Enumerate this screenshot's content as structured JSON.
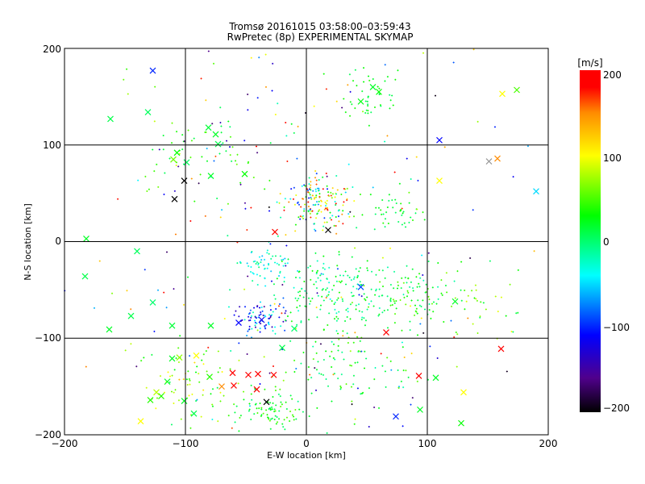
{
  "chart_data": {
    "type": "scatter",
    "title": "Tromsø 20161015 03:58:00–03:59:43",
    "subtitle": "RwPretec (8p) EXPERIMENTAL SKYMAP",
    "xlabel": "E-W location [km]",
    "ylabel": "N-S location [km]",
    "xlim": [
      -200,
      200
    ],
    "ylim": [
      -200,
      200
    ],
    "xticks": [
      "−200",
      "−100",
      "0",
      "100",
      "200"
    ],
    "yticks": [
      "−200",
      "−100",
      "0",
      "100",
      "200"
    ],
    "grid": true,
    "colorbar": {
      "label": "[m/s]",
      "range": [
        -200,
        200
      ],
      "ticks": [
        "200",
        "100",
        "0",
        "−100",
        "−200"
      ],
      "colors": {
        "200": "#ff0000",
        "180": "#ff1000",
        "150": "#ff8c00",
        "100": "#ffff00",
        "30": "#00ff00",
        "0": "#00ff6e",
        "-40": "#00ffff",
        "-110": "#0000ff",
        "-160": "#50008c",
        "-200": "#000000"
      }
    },
    "large_markers": [
      [
        -127,
        177,
        -100
      ],
      [
        -162,
        127,
        10
      ],
      [
        -131,
        134,
        5
      ],
      [
        -81,
        118,
        15
      ],
      [
        -75,
        111,
        20
      ],
      [
        -73,
        101,
        10
      ],
      [
        -107,
        92,
        30
      ],
      [
        -110,
        85,
        60
      ],
      [
        -99,
        82,
        5
      ],
      [
        -109,
        44,
        -200
      ],
      [
        -101,
        63,
        -200
      ],
      [
        -79,
        68,
        20
      ],
      [
        -51,
        70,
        30
      ],
      [
        -26,
        10,
        190
      ],
      [
        18,
        12,
        -200
      ],
      [
        -182,
        3,
        20
      ],
      [
        -127,
        -63,
        0
      ],
      [
        -145,
        -77,
        10
      ],
      [
        -163,
        -91,
        20
      ],
      [
        -111,
        -87,
        15
      ],
      [
        -79,
        -87,
        20
      ],
      [
        -56,
        -84,
        -110
      ],
      [
        -37,
        -81,
        -120
      ],
      [
        45,
        -47,
        -90
      ],
      [
        66,
        -94,
        200
      ],
      [
        123,
        -62,
        20
      ],
      [
        161,
        -111,
        200
      ],
      [
        110,
        105,
        -110
      ],
      [
        110,
        63,
        100
      ],
      [
        151,
        83,
        -500
      ],
      [
        158,
        86,
        150
      ],
      [
        190,
        52,
        -50
      ],
      [
        162,
        153,
        100
      ],
      [
        174,
        157,
        50
      ],
      [
        -111,
        -121,
        20
      ],
      [
        -91,
        -118,
        100
      ],
      [
        -61,
        -136,
        200
      ],
      [
        -48,
        -138,
        200
      ],
      [
        -40,
        -137,
        200
      ],
      [
        -60,
        -149,
        190
      ],
      [
        -41,
        -153,
        200
      ],
      [
        -33,
        -166,
        -200
      ],
      [
        -27,
        -138,
        200
      ],
      [
        -129,
        -164,
        40
      ],
      [
        -101,
        -165,
        20
      ],
      [
        -137,
        -186,
        100
      ],
      [
        -93,
        -178,
        10
      ],
      [
        74,
        -181,
        -100
      ],
      [
        94,
        -174,
        20
      ],
      [
        128,
        -188,
        30
      ],
      [
        107,
        -141,
        20
      ],
      [
        93,
        -139,
        200
      ],
      [
        130,
        -156,
        100
      ],
      [
        -120,
        -160,
        40
      ],
      [
        -124,
        -156,
        80
      ],
      [
        55,
        160,
        20
      ],
      [
        60,
        155,
        30
      ],
      [
        45,
        145,
        25
      ],
      [
        -183,
        -36,
        10
      ],
      [
        -140,
        -10,
        5
      ],
      [
        -105,
        -120,
        70
      ],
      [
        -70,
        -150,
        150
      ],
      [
        -80,
        -140,
        40
      ],
      [
        -20,
        -110,
        10
      ],
      [
        -10,
        -90,
        0
      ],
      [
        -115,
        -145,
        20
      ]
    ],
    "dot_clusters": [
      {
        "cx": 10,
        "cy": 40,
        "sx": 14,
        "sy": 14,
        "n": 160,
        "v": [
          -120,
          200
        ]
      },
      {
        "cx": 55,
        "cy": 150,
        "sx": 12,
        "sy": 14,
        "n": 45,
        "v": [
          0,
          40
        ]
      },
      {
        "cx": -38,
        "cy": -82,
        "sx": 10,
        "sy": 8,
        "n": 80,
        "v": [
          -160,
          -20
        ]
      },
      {
        "cx": -35,
        "cy": -25,
        "sx": 12,
        "sy": 10,
        "n": 60,
        "v": [
          -60,
          0
        ]
      },
      {
        "cx": 20,
        "cy": -50,
        "sx": 22,
        "sy": 18,
        "n": 150,
        "v": [
          -30,
          40
        ]
      },
      {
        "cx": 80,
        "cy": -55,
        "sx": 20,
        "sy": 15,
        "n": 110,
        "v": [
          -20,
          60
        ]
      },
      {
        "cx": -30,
        "cy": -175,
        "sx": 14,
        "sy": 12,
        "n": 90,
        "v": [
          0,
          60
        ]
      },
      {
        "cx": 40,
        "cy": -125,
        "sx": 25,
        "sy": 20,
        "n": 90,
        "v": [
          -20,
          60
        ]
      },
      {
        "cx": -95,
        "cy": -150,
        "sx": 22,
        "sy": 22,
        "n": 70,
        "v": [
          0,
          120
        ]
      },
      {
        "cx": 70,
        "cy": 30,
        "sx": 12,
        "sy": 10,
        "n": 40,
        "v": [
          0,
          40
        ]
      },
      {
        "cx": -80,
        "cy": 90,
        "sx": 30,
        "sy": 25,
        "n": 50,
        "v": [
          0,
          60
        ]
      },
      {
        "cx": 140,
        "cy": -60,
        "sx": 20,
        "sy": 20,
        "n": 40,
        "v": [
          0,
          100
        ]
      },
      {
        "cx": 0,
        "cy": 100,
        "sx": 90,
        "sy": 90,
        "n": 140,
        "v": [
          -200,
          200
        ]
      },
      {
        "cx": 0,
        "cy": -100,
        "sx": 100,
        "sy": 80,
        "n": 150,
        "v": [
          -200,
          200
        ]
      }
    ]
  }
}
